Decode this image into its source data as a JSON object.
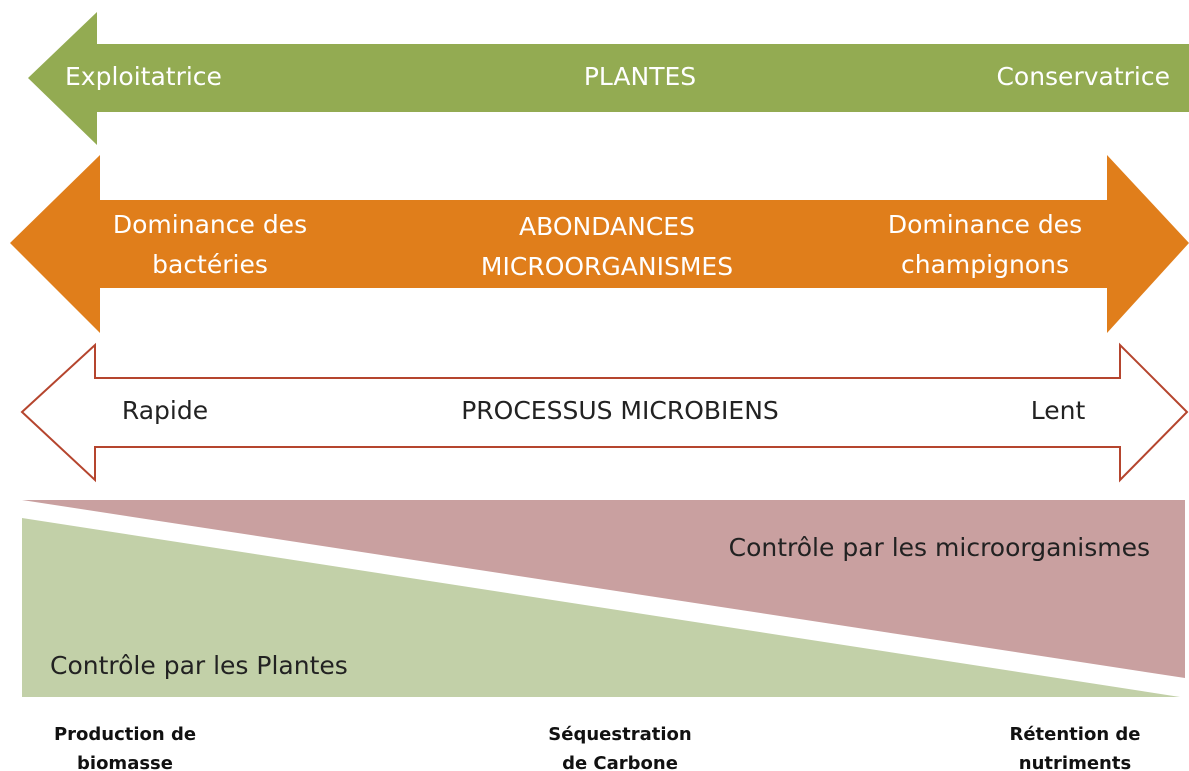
{
  "plants": {
    "left": "Exploitatrice",
    "center": "PLANTES",
    "right": "Conservatrice"
  },
  "microbes": {
    "left": [
      "Dominance des",
      "bactéries"
    ],
    "center": [
      "ABONDANCES",
      "MICROORGANISMES"
    ],
    "right": [
      "Dominance des",
      "champignons"
    ]
  },
  "processes": {
    "left": "Rapide",
    "center": "PROCESSUS MICROBIENS",
    "right": "Lent"
  },
  "control": {
    "microbes": "Contrôle par les microorganismes",
    "plants": "Contrôle par les Plantes"
  },
  "outcomes": [
    [
      "Production de",
      "biomasse"
    ],
    [
      "Séquestration",
      "de Carbone"
    ],
    [
      "Rétention de",
      "nutriments"
    ]
  ]
}
